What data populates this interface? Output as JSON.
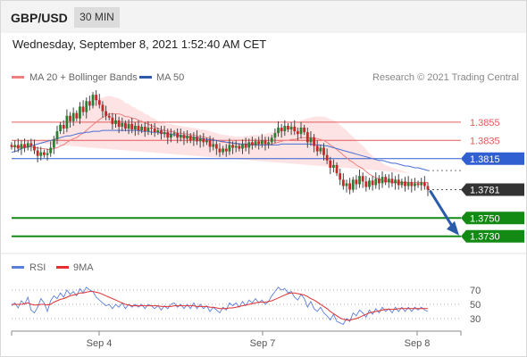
{
  "header": {
    "symbol": "GBP/USD",
    "timeframe": "30 MIN"
  },
  "datetime": "Wednesday, September 8, 2021 1:52:40 AM CET",
  "legend": {
    "ma20": "MA 20 + Bollinger Bands",
    "ma50": "MA 50",
    "credit": "Research © 2021 Trading Central"
  },
  "rsi_legend": {
    "rsi": "RSI",
    "ma": "9MA"
  },
  "colors": {
    "up": "#2e7d32",
    "down": "#c62828",
    "resistance": "#e35b5b",
    "support_blue": "#2f5fd0",
    "target_green": "#138a13",
    "current": "#333333",
    "ma20": "#f08080",
    "ma50": "#4a6fd6",
    "bb": "#fddede",
    "rsi": "#5b7fd8",
    "rsi_ma": "#e03030",
    "arrow": "#2a5caa"
  },
  "chart_data": {
    "type": "candlestick",
    "x_ticks": [
      "Sep 4",
      "Sep 7",
      "Sep 8"
    ],
    "y_range": [
      1.3718,
      1.3892
    ],
    "levels": [
      {
        "label": "1.3855",
        "value": 1.3855,
        "kind": "resistance"
      },
      {
        "label": "1.3835",
        "value": 1.3835,
        "kind": "resistance"
      },
      {
        "label": "1.3815",
        "value": 1.3815,
        "kind": "pivot"
      },
      {
        "label": "1.3781",
        "value": 1.3781,
        "kind": "current"
      },
      {
        "label": "1.3750",
        "value": 1.375,
        "kind": "target"
      },
      {
        "label": "1.3730",
        "value": 1.373,
        "kind": "target"
      }
    ],
    "closes": [
      1.3828,
      1.383,
      1.3826,
      1.3831,
      1.3827,
      1.3832,
      1.3829,
      1.3824,
      1.3818,
      1.3822,
      1.3819,
      1.3821,
      1.3827,
      1.3836,
      1.3845,
      1.3852,
      1.3848,
      1.3862,
      1.3856,
      1.3865,
      1.3859,
      1.3872,
      1.3866,
      1.3878,
      1.3873,
      1.3885,
      1.3879,
      1.3874,
      1.3867,
      1.3862,
      1.386,
      1.3853,
      1.3857,
      1.385,
      1.3854,
      1.3848,
      1.3853,
      1.3847,
      1.3851,
      1.3846,
      1.385,
      1.3845,
      1.3849,
      1.3848,
      1.3844,
      1.3846,
      1.3842,
      1.3844,
      1.3838,
      1.3842,
      1.3843,
      1.3838,
      1.3841,
      1.3837,
      1.384,
      1.3835,
      1.3839,
      1.3834,
      1.3837,
      1.3833,
      1.3835,
      1.3828,
      1.3831,
      1.3826,
      1.3822,
      1.3826,
      1.3823,
      1.383,
      1.3827,
      1.3829,
      1.3826,
      1.3831,
      1.3827,
      1.3833,
      1.383,
      1.3834,
      1.3831,
      1.3835,
      1.3831,
      1.3833,
      1.3838,
      1.3843,
      1.3849,
      1.3845,
      1.3851,
      1.3847,
      1.385,
      1.3845,
      1.3842,
      1.3849,
      1.3844,
      1.3833,
      1.3838,
      1.3829,
      1.3823,
      1.3827,
      1.3819,
      1.3813,
      1.3805,
      1.3808,
      1.3799,
      1.3792,
      1.3785,
      1.3788,
      1.3781,
      1.3792,
      1.3787,
      1.3796,
      1.379,
      1.3784,
      1.3791,
      1.3786,
      1.3793,
      1.3788,
      1.3795,
      1.3789,
      1.3793,
      1.3788,
      1.3792,
      1.3786,
      1.379,
      1.3785,
      1.3789,
      1.3785,
      1.3788,
      1.3786,
      1.3789,
      1.3785,
      1.3781
    ],
    "ma20": [
      1.3828,
      1.3828,
      1.3828,
      1.3828,
      1.3828,
      1.3828,
      1.3828,
      1.3827,
      1.3827,
      1.3826,
      1.3826,
      1.3825,
      1.3825,
      1.3826,
      1.3827,
      1.3829,
      1.383,
      1.3833,
      1.3835,
      1.3837,
      1.3838,
      1.3841,
      1.3843,
      1.3846,
      1.3849,
      1.3852,
      1.3855,
      1.3858,
      1.386,
      1.3862,
      1.3864,
      1.3864,
      1.3864,
      1.3864,
      1.3863,
      1.3861,
      1.3861,
      1.3859,
      1.3859,
      1.3857,
      1.3856,
      1.3854,
      1.3853,
      1.3851,
      1.385,
      1.3848,
      1.3847,
      1.3846,
      1.3845,
      1.3845,
      1.3844,
      1.3843,
      1.3843,
      1.3842,
      1.3842,
      1.3841,
      1.3841,
      1.384,
      1.3839,
      1.3839,
      1.3838,
      1.3837,
      1.3836,
      1.3835,
      1.3834,
      1.3833,
      1.3833,
      1.3832,
      1.3832,
      1.3831,
      1.3831,
      1.3831,
      1.3831,
      1.3831,
      1.3831,
      1.3831,
      1.383,
      1.383,
      1.383,
      1.3831,
      1.3831,
      1.3832,
      1.3833,
      1.3834,
      1.3835,
      1.3835,
      1.3836,
      1.3836,
      1.3837,
      1.3838,
      1.3838,
      1.3838,
      1.3838,
      1.3838,
      1.3837,
      1.3836,
      1.3835,
      1.3833,
      1.383,
      1.3828,
      1.3825,
      1.3822,
      1.3819,
      1.3816,
      1.3813,
      1.3811,
      1.3808,
      1.3806,
      1.3804,
      1.3801,
      1.3798,
      1.3796,
      1.3794,
      1.3793,
      1.3791,
      1.379,
      1.379,
      1.3789,
      1.3789,
      1.3789,
      1.3789,
      1.3789,
      1.3789,
      1.3789,
      1.3789,
      1.3789,
      1.3789,
      1.3789,
      1.3789
    ],
    "ma50": [
      1.3822,
      1.3823,
      1.3824,
      1.3826,
      1.3827,
      1.3828,
      1.3829,
      1.383,
      1.3831,
      1.3832,
      1.3833,
      1.3834,
      1.3835,
      1.3836,
      1.3837,
      1.3838,
      1.3839,
      1.384,
      1.384,
      1.3841,
      1.3842,
      1.3843,
      1.3843,
      1.3844,
      1.3844,
      1.3845,
      1.3845,
      1.3845,
      1.3846,
      1.3846,
      1.3846,
      1.3846,
      1.3846,
      1.3846,
      1.3846,
      1.3846,
      1.3846,
      1.3846,
      1.3846,
      1.3846,
      1.3845,
      1.3845,
      1.3845,
      1.3844,
      1.3844,
      1.3844,
      1.3843,
      1.3843,
      1.3842,
      1.3842,
      1.3841,
      1.3841,
      1.384,
      1.384,
      1.3839,
      1.3839,
      1.3838,
      1.3838,
      1.3837,
      1.3837,
      1.3836,
      1.3836,
      1.3835,
      1.3835,
      1.3834,
      1.3834,
      1.3833,
      1.3833,
      1.3832,
      1.3832,
      1.3831,
      1.3831,
      1.3831,
      1.383,
      1.383,
      1.383,
      1.383,
      1.383,
      1.383,
      1.383,
      1.383,
      1.383,
      1.383,
      1.3831,
      1.3831,
      1.3831,
      1.3831,
      1.3831,
      1.3831,
      1.3831,
      1.3831,
      1.3831,
      1.3831,
      1.383,
      1.383,
      1.383,
      1.3829,
      1.3829,
      1.3828,
      1.3827,
      1.3826,
      1.3825,
      1.3824,
      1.3823,
      1.3822,
      1.3821,
      1.382,
      1.3819,
      1.3818,
      1.3817,
      1.3816,
      1.3815,
      1.3814,
      1.3813,
      1.3813,
      1.3812,
      1.3811,
      1.381,
      1.381,
      1.3809,
      1.3808,
      1.3807,
      1.3807,
      1.3806,
      1.3805,
      1.3805,
      1.3804,
      1.3803,
      1.3802
    ],
    "bb_width": [
      0.0006,
      0.0006,
      0.0006,
      0.0006,
      0.0006,
      0.0006,
      0.0007,
      0.0007,
      0.0008,
      0.0008,
      0.0009,
      0.0009,
      0.001,
      0.0011,
      0.0012,
      0.0013,
      0.0014,
      0.0015,
      0.0016,
      0.0017,
      0.0018,
      0.0019,
      0.002,
      0.0021,
      0.0022,
      0.0023,
      0.0023,
      0.0023,
      0.0022,
      0.0021,
      0.002,
      0.0019,
      0.0018,
      0.0017,
      0.0016,
      0.0015,
      0.0014,
      0.0013,
      0.0012,
      0.0011,
      0.0011,
      0.001,
      0.001,
      0.0009,
      0.0009,
      0.0008,
      0.0008,
      0.0008,
      0.0008,
      0.0008,
      0.0008,
      0.0008,
      0.0008,
      0.0008,
      0.0008,
      0.0008,
      0.0008,
      0.0008,
      0.0008,
      0.0008,
      0.0008,
      0.0008,
      0.0008,
      0.0008,
      0.0008,
      0.0008,
      0.0008,
      0.0008,
      0.0008,
      0.0008,
      0.0008,
      0.0008,
      0.0009,
      0.0009,
      0.001,
      0.001,
      0.0011,
      0.0011,
      0.0012,
      0.0012,
      0.0013,
      0.0013,
      0.0014,
      0.0014,
      0.0015,
      0.0015,
      0.0016,
      0.0017,
      0.0018,
      0.0019,
      0.002,
      0.0021,
      0.0022,
      0.0023,
      0.0024,
      0.0025,
      0.0026,
      0.0027,
      0.0028,
      0.0029,
      0.003,
      0.003,
      0.003,
      0.003,
      0.0029,
      0.0028,
      0.0027,
      0.0026,
      0.0025,
      0.0024,
      0.0023,
      0.0022,
      0.0021,
      0.002,
      0.0019,
      0.0018,
      0.0017,
      0.0016,
      0.0015,
      0.0014,
      0.0013,
      0.0012,
      0.0011,
      0.001,
      0.001,
      0.0009,
      0.0009,
      0.0009
    ],
    "forecast": {
      "from": 1.3781,
      "to": 1.373
    },
    "rsi": {
      "ticks": [
        70,
        50,
        30
      ],
      "range": [
        15,
        85
      ],
      "values": [
        48,
        52,
        45,
        55,
        50,
        60,
        42,
        38,
        46,
        58,
        52,
        40,
        55,
        62,
        58,
        66,
        60,
        70,
        64,
        68,
        62,
        72,
        66,
        74,
        70,
        68,
        60,
        56,
        52,
        48,
        50,
        44,
        50,
        46,
        52,
        44,
        50,
        46,
        50,
        46,
        50,
        44,
        50,
        48,
        44,
        48,
        42,
        48,
        44,
        50,
        52,
        46,
        50,
        44,
        50,
        44,
        52,
        44,
        50,
        44,
        48,
        40,
        46,
        42,
        38,
        46,
        42,
        52,
        48,
        52,
        46,
        54,
        48,
        56,
        52,
        58,
        52,
        56,
        50,
        54,
        62,
        68,
        74,
        70,
        72,
        66,
        68,
        60,
        56,
        64,
        58,
        46,
        54,
        44,
        40,
        46,
        38,
        34,
        28,
        36,
        26,
        24,
        22,
        30,
        26,
        38,
        34,
        42,
        38,
        32,
        42,
        36,
        44,
        38,
        46,
        40,
        44,
        38,
        46,
        40,
        46,
        40,
        46,
        40,
        46,
        42,
        46,
        42,
        40
      ],
      "ma9": [
        50,
        50,
        50,
        50,
        51,
        52,
        50,
        49,
        49,
        50,
        50,
        49,
        50,
        53,
        55,
        57,
        58,
        60,
        62,
        63,
        64,
        66,
        66,
        67,
        68,
        68,
        67,
        66,
        64,
        62,
        60,
        58,
        56,
        54,
        52,
        50,
        49,
        48,
        48,
        48,
        48,
        48,
        48,
        48,
        48,
        48,
        47,
        47,
        47,
        47,
        48,
        48,
        48,
        48,
        48,
        48,
        48,
        47,
        47,
        47,
        47,
        46,
        46,
        45,
        44,
        44,
        44,
        45,
        45,
        46,
        47,
        48,
        49,
        50,
        51,
        52,
        53,
        53,
        53,
        54,
        55,
        57,
        59,
        61,
        63,
        65,
        66,
        66,
        65,
        64,
        63,
        61,
        58,
        56,
        53,
        50,
        47,
        44,
        40,
        37,
        34,
        31,
        29,
        28,
        28,
        29,
        30,
        32,
        34,
        36,
        38,
        39,
        40,
        41,
        42,
        43,
        43,
        43,
        43,
        44,
        44,
        44,
        44,
        44,
        44,
        44,
        44,
        44,
        44
      ]
    }
  }
}
